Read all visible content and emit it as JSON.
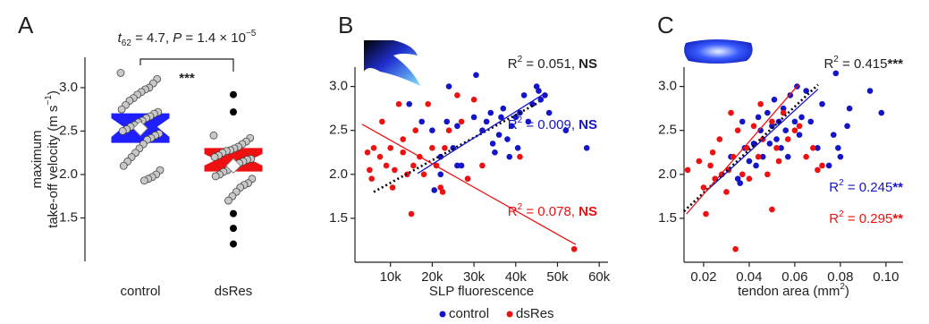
{
  "chart_data": [
    {
      "type": "box",
      "panel": "A",
      "annotation": [
        {
          "text": "t",
          "style": "italic"
        },
        {
          "text": "62",
          "style": "sub"
        },
        {
          "text": " = 4.7, "
        },
        {
          "text": "P",
          "style": "italic"
        },
        {
          "text": " = 1.4 × 10"
        },
        {
          "text": "−5",
          "style": "sup"
        }
      ],
      "significance": "***",
      "y_label": [
        [
          {
            "text": "maximum"
          }
        ],
        [
          {
            "text": "take-off velocity (m s"
          },
          {
            "text": "−1",
            "style": "sup"
          },
          {
            "text": ")"
          }
        ]
      ],
      "categories": [
        "control",
        "dsRes"
      ],
      "ylim": [
        1.0,
        3.35
      ],
      "yticks": [
        {
          "value": 1.5,
          "label": "1.5"
        },
        {
          "value": 2,
          "label": "2.0"
        },
        {
          "value": 2.5,
          "label": "2.5"
        },
        {
          "value": 3,
          "label": "3.0"
        }
      ],
      "point_color": "#c8c8c8",
      "outlier_color": "#000000",
      "boxes": [
        {
          "color": "#1f1fff",
          "q1": 2.37,
          "notch_low": 2.43,
          "median": 2.55,
          "notch_high": 2.65,
          "q3": 2.7,
          "mean": 2.53,
          "points": [
            3.17,
            3.1,
            3.05,
            3.0,
            2.98,
            2.95,
            2.92,
            2.88,
            2.85,
            2.8,
            2.75,
            2.72,
            2.7,
            2.67,
            2.65,
            2.62,
            2.6,
            2.57,
            2.55,
            2.52,
            2.5,
            2.47,
            2.45,
            2.42,
            2.4,
            2.35,
            2.3,
            2.25,
            2.2,
            2.15,
            2.1,
            2.05,
            2.0,
            1.97,
            1.95,
            1.93
          ],
          "outliers": []
        },
        {
          "color": "#ee1111",
          "q1": 2.04,
          "notch_low": 2.1,
          "median": 2.17,
          "notch_high": 2.24,
          "q3": 2.3,
          "mean": 2.1,
          "points": [
            2.45,
            2.42,
            2.38,
            2.35,
            2.32,
            2.3,
            2.28,
            2.27,
            2.25,
            2.22,
            2.2,
            2.18,
            2.17,
            2.15,
            2.13,
            2.1,
            2.08,
            2.05,
            2.03,
            2.0,
            1.98,
            1.95,
            1.9,
            1.88,
            1.85,
            1.8,
            1.75,
            1.7
          ],
          "outliers": [
            2.92,
            2.72,
            1.55,
            1.38,
            1.2
          ]
        }
      ]
    },
    {
      "type": "scatter",
      "panel": "B",
      "x_label": [
        {
          "text": "SLP fluorescence"
        }
      ],
      "xlim": [
        1500,
        62100
      ],
      "ylim": [
        1.0,
        3.22
      ],
      "xticks": [
        {
          "value": 10000,
          "label": "10k"
        },
        {
          "value": 20000,
          "label": "20k"
        },
        {
          "value": 30000,
          "label": "30k"
        },
        {
          "value": 40000,
          "label": "40k"
        },
        {
          "value": 50000,
          "label": "50k"
        },
        {
          "value": 60000,
          "label": "60k"
        }
      ],
      "yticks": [
        {
          "value": 1.5,
          "label": "1.5"
        },
        {
          "value": 2,
          "label": "2.0"
        },
        {
          "value": 2.5,
          "label": "2.5"
        },
        {
          "value": 3,
          "label": "3.0"
        }
      ],
      "series": [
        {
          "name": "control",
          "color": "#1414c8",
          "x": [
            14500,
            17500,
            20000,
            22000,
            23500,
            24000,
            25000,
            26000,
            27000,
            28500,
            30000,
            30500,
            32000,
            33000,
            34000,
            34500,
            35000,
            36000,
            36500,
            37000,
            38000,
            38500,
            39000,
            40000,
            40500,
            41000,
            42000,
            43000,
            44000,
            45000,
            45500,
            46000,
            47000,
            48000,
            52000,
            57000,
            22000,
            26000,
            20500
          ],
          "values": [
            2.8,
            2.6,
            2.5,
            2.0,
            2.6,
            3.0,
            2.3,
            2.55,
            2.1,
            1.95,
            2.65,
            3.13,
            2.5,
            2.6,
            2.7,
            2.35,
            2.25,
            2.45,
            2.65,
            2.75,
            2.4,
            2.2,
            2.55,
            2.65,
            2.3,
            2.7,
            2.9,
            2.6,
            2.8,
            3.0,
            2.95,
            2.85,
            2.9,
            2.7,
            2.5,
            2.3,
            2.2,
            2.1,
            1.82
          ]
        },
        {
          "name": "dsRes",
          "color": "#ee1111",
          "x": [
            4500,
            5000,
            5500,
            6000,
            7500,
            8000,
            9000,
            10000,
            10500,
            11000,
            12000,
            13000,
            14000,
            15000,
            15500,
            16000,
            17000,
            18000,
            19000,
            20000,
            21000,
            22000,
            22500,
            23000,
            24000,
            26000,
            27000,
            28500,
            30000,
            32000,
            41000,
            54000,
            13000
          ],
          "values": [
            2.25,
            2.05,
            1.95,
            2.3,
            2.2,
            2.6,
            2.1,
            2.3,
            1.85,
            2.05,
            2.8,
            2.25,
            2.0,
            1.55,
            2.1,
            2.5,
            2.2,
            2.0,
            2.8,
            2.3,
            2.1,
            1.85,
            1.8,
            2.3,
            2.5,
            2.9,
            2.6,
            1.95,
            2.85,
            2.1,
            2.2,
            1.15,
            2.4
          ]
        }
      ],
      "fit_lines": [
        {
          "color": "#000000",
          "style": "dotted",
          "x": [
            6000,
            45600
          ],
          "values": [
            1.8,
            2.82
          ]
        },
        {
          "color": "#1414c8",
          "style": "solid",
          "x": [
            16500,
            46900
          ],
          "values": [
            2.01,
            2.92
          ]
        },
        {
          "color": "#ee1111",
          "style": "solid",
          "x": [
            3200,
            54400
          ],
          "values": [
            2.57,
            1.2
          ]
        }
      ],
      "annotations": [
        {
          "color": "#222222",
          "parts": [
            {
              "text": "R"
            },
            {
              "text": "2",
              "style": "sup"
            },
            {
              "text": " = 0.051, "
            },
            {
              "text": "NS",
              "style": "bold"
            }
          ]
        },
        {
          "color": "#1414c8",
          "parts": [
            {
              "text": "R"
            },
            {
              "text": "2",
              "style": "sup"
            },
            {
              "text": " = 0.009, "
            },
            {
              "text": "NS",
              "style": "bold"
            }
          ]
        },
        {
          "color": "#ee1111",
          "parts": [
            {
              "text": "R"
            },
            {
              "text": "2",
              "style": "sup"
            },
            {
              "text": " = 0.078, "
            },
            {
              "text": "NS",
              "style": "bold"
            }
          ]
        }
      ]
    },
    {
      "type": "scatter",
      "panel": "C",
      "x_label": [
        {
          "text": "tendon area (mm"
        },
        {
          "text": "2",
          "style": "sup"
        },
        {
          "text": ")"
        }
      ],
      "xlim": [
        0.0114,
        0.1075
      ],
      "ylim": [
        1.0,
        3.22
      ],
      "xticks": [
        0.02,
        0.04,
        0.06,
        0.08,
        {
          "value": 0.1,
          "label": "0.10"
        }
      ],
      "yticks": [
        {
          "value": 1.5,
          "label": "1.5"
        },
        {
          "value": 2,
          "label": "2.0"
        },
        {
          "value": 2.5,
          "label": "2.5"
        },
        {
          "value": 3,
          "label": "3.0"
        }
      ],
      "series": [
        {
          "name": "control",
          "color": "#1414c8",
          "x": [
            0.028,
            0.032,
            0.035,
            0.037,
            0.038,
            0.04,
            0.042,
            0.043,
            0.044,
            0.045,
            0.046,
            0.048,
            0.049,
            0.05,
            0.051,
            0.052,
            0.053,
            0.054,
            0.055,
            0.056,
            0.057,
            0.058,
            0.06,
            0.061,
            0.062,
            0.063,
            0.065,
            0.067,
            0.07,
            0.072,
            0.075,
            0.077,
            0.078,
            0.079,
            0.08,
            0.083,
            0.084,
            0.093,
            0.098,
            0.036
          ],
          "values": [
            2.0,
            2.2,
            1.95,
            2.6,
            2.3,
            2.15,
            2.35,
            2.1,
            2.65,
            2.5,
            2.2,
            2.7,
            2.35,
            2.55,
            2.85,
            2.4,
            2.6,
            2.3,
            2.75,
            2.5,
            2.2,
            2.9,
            2.6,
            3.0,
            2.45,
            2.65,
            2.95,
            2.6,
            2.3,
            2.8,
            2.1,
            2.45,
            3.15,
            2.3,
            2.2,
            2.55,
            2.75,
            2.95,
            2.7,
            1.9
          ]
        },
        {
          "name": "dsRes",
          "color": "#ee1111",
          "x": [
            0.013,
            0.018,
            0.02,
            0.021,
            0.023,
            0.024,
            0.025,
            0.027,
            0.028,
            0.03,
            0.031,
            0.032,
            0.033,
            0.034,
            0.035,
            0.037,
            0.039,
            0.04,
            0.042,
            0.044,
            0.045,
            0.046,
            0.048,
            0.05,
            0.052,
            0.053,
            0.055,
            0.057,
            0.06,
            0.062,
            0.065,
            0.068,
            0.07,
            0.072,
            0.05
          ],
          "values": [
            2.05,
            2.15,
            1.85,
            1.55,
            2.1,
            2.25,
            1.95,
            2.4,
            2.0,
            1.8,
            2.05,
            2.7,
            2.2,
            1.15,
            2.5,
            2.0,
            2.3,
            1.95,
            2.55,
            2.2,
            2.8,
            2.4,
            2.0,
            2.6,
            2.3,
            2.15,
            2.7,
            2.4,
            2.5,
            2.55,
            2.2,
            2.3,
            2.05,
            2.1,
            1.6
          ]
        }
      ],
      "fit_lines": [
        {
          "color": "#000000",
          "style": "dotted",
          "x": [
            0.0114,
            0.0702
          ],
          "values": [
            1.58,
            3.02
          ]
        },
        {
          "color": "#1414c8",
          "style": "solid",
          "x": [
            0.0212,
            0.0702
          ],
          "values": [
            1.81,
            2.97
          ]
        },
        {
          "color": "#ee1111",
          "style": "solid",
          "x": [
            0.0125,
            0.0616
          ],
          "values": [
            1.55,
            3.02
          ]
        }
      ],
      "annotations": [
        {
          "color": "#222222",
          "parts": [
            {
              "text": "R"
            },
            {
              "text": "2",
              "style": "sup"
            },
            {
              "text": " = 0.415"
            },
            {
              "text": "***",
              "style": "bold"
            }
          ]
        },
        {
          "color": "#1414c8",
          "parts": [
            {
              "text": "R"
            },
            {
              "text": "2",
              "style": "sup"
            },
            {
              "text": " = 0.245"
            },
            {
              "text": "**",
              "style": "bold"
            }
          ]
        },
        {
          "color": "#ee1111",
          "parts": [
            {
              "text": "R"
            },
            {
              "text": "2",
              "style": "sup"
            },
            {
              "text": " = 0.295"
            },
            {
              "text": "**",
              "style": "bold"
            }
          ]
        }
      ]
    }
  ]
}
